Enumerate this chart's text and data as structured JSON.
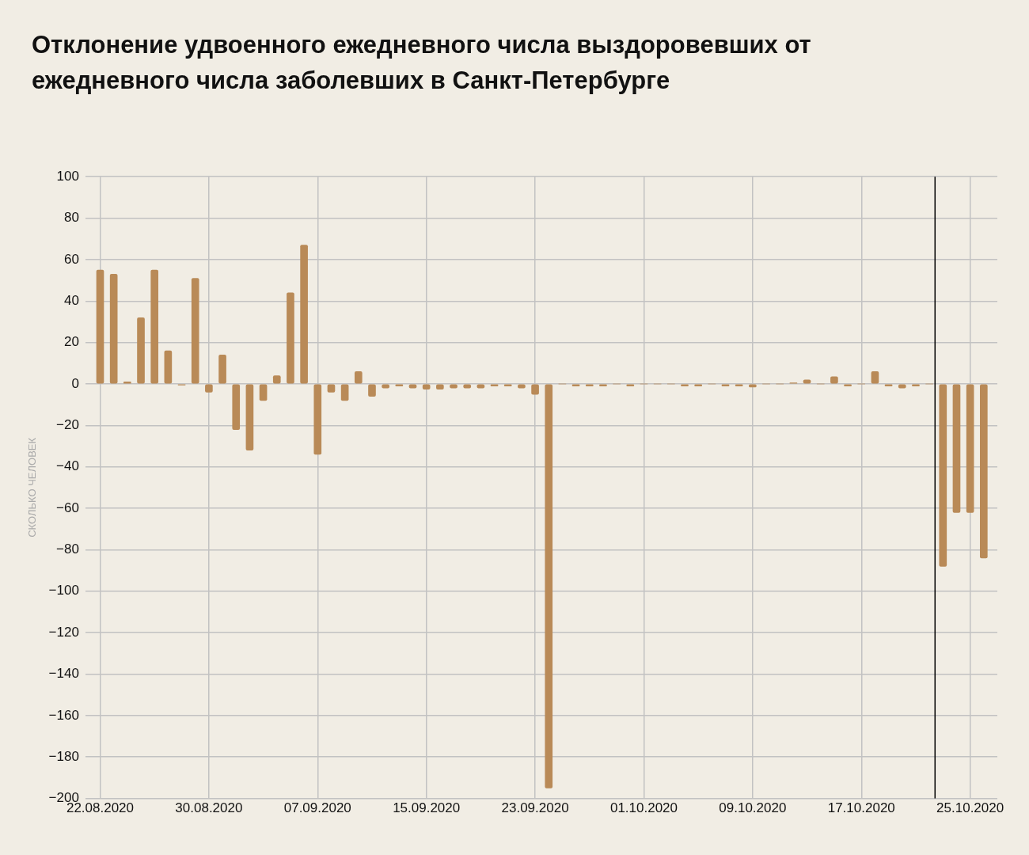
{
  "chart_data": {
    "type": "bar",
    "title": "Отклонение удвоенного ежедневного числа выздоровевших от ежедневного числа заболевших в Санкт-Петербурге",
    "ylabel": "СКОЛЬКО ЧЕЛОВЕК",
    "x": [
      "2020-08-22",
      "2020-08-23",
      "2020-08-24",
      "2020-08-25",
      "2020-08-26",
      "2020-08-27",
      "2020-08-28",
      "2020-08-29",
      "2020-08-30",
      "2020-08-31",
      "2020-09-01",
      "2020-09-02",
      "2020-09-03",
      "2020-09-04",
      "2020-09-05",
      "2020-09-06",
      "2020-09-07",
      "2020-09-08",
      "2020-09-09",
      "2020-09-10",
      "2020-09-11",
      "2020-09-12",
      "2020-09-13",
      "2020-09-14",
      "2020-09-15",
      "2020-09-16",
      "2020-09-17",
      "2020-09-18",
      "2020-09-19",
      "2020-09-20",
      "2020-09-21",
      "2020-09-22",
      "2020-09-23",
      "2020-09-24",
      "2020-09-25",
      "2020-09-26",
      "2020-09-27",
      "2020-09-28",
      "2020-09-29",
      "2020-09-30",
      "2020-10-01",
      "2020-10-02",
      "2020-10-03",
      "2020-10-04",
      "2020-10-05",
      "2020-10-06",
      "2020-10-07",
      "2020-10-08",
      "2020-10-09",
      "2020-10-10",
      "2020-10-11",
      "2020-10-12",
      "2020-10-13",
      "2020-10-14",
      "2020-10-15",
      "2020-10-16",
      "2020-10-17",
      "2020-10-18",
      "2020-10-19",
      "2020-10-20",
      "2020-10-21",
      "2020-10-22",
      "2020-10-23",
      "2020-10-24",
      "2020-10-25",
      "2020-10-26"
    ],
    "values": [
      55,
      53,
      1,
      32,
      55,
      16,
      -0.5,
      51,
      -4,
      14,
      -22,
      -32,
      -8,
      4,
      44,
      67,
      -34,
      -4,
      -8,
      6,
      -6,
      -2,
      -1,
      -2,
      -2.5,
      -2.5,
      -2,
      -2,
      -2,
      -1,
      -1,
      -2,
      -5,
      -195,
      0,
      -1,
      -1,
      -1,
      0,
      -1,
      0,
      0,
      0,
      -1,
      -1,
      0,
      -1,
      -1,
      -1.5,
      0,
      0,
      0.5,
      2,
      0,
      3.5,
      -1,
      0,
      6,
      -1,
      -2,
      -1,
      0,
      -88,
      -62,
      -62,
      -84
    ],
    "color": "#b98a57",
    "xlim": [
      "2020-08-20T22:00",
      "2020-10-27T00:00"
    ],
    "xticks": [
      {
        "value": "2020-08-22",
        "label": "22.08.2020"
      },
      {
        "value": "2020-08-30",
        "label": "30.08.2020"
      },
      {
        "value": "2020-09-07",
        "label": "07.09.2020"
      },
      {
        "value": "2020-09-15",
        "label": "15.09.2020"
      },
      {
        "value": "2020-09-23",
        "label": "23.09.2020"
      },
      {
        "value": "2020-10-01",
        "label": "01.10.2020"
      },
      {
        "value": "2020-10-09",
        "label": "09.10.2020"
      },
      {
        "value": "2020-10-17",
        "label": "17.10.2020"
      },
      {
        "value": "2020-10-25",
        "label": "25.10.2020"
      }
    ],
    "ylim": [
      -200,
      100
    ],
    "yticks": [
      100,
      80,
      60,
      40,
      20,
      0,
      {
        "value": -20,
        "label": "−20"
      },
      {
        "value": -40,
        "label": "−40"
      },
      {
        "value": -60,
        "label": "−60"
      },
      {
        "value": -80,
        "label": "−80"
      },
      {
        "value": -100,
        "label": "−100"
      },
      {
        "value": -120,
        "label": "−120"
      },
      {
        "value": -140,
        "label": "−140"
      },
      {
        "value": -160,
        "label": "−160"
      },
      {
        "value": -180,
        "label": "−180"
      },
      {
        "value": -200,
        "label": "−200"
      }
    ],
    "grid": true,
    "ref_lines": [
      {
        "axis": "x",
        "value": "2020-10-22T10:00",
        "color": "#000000"
      }
    ]
  }
}
